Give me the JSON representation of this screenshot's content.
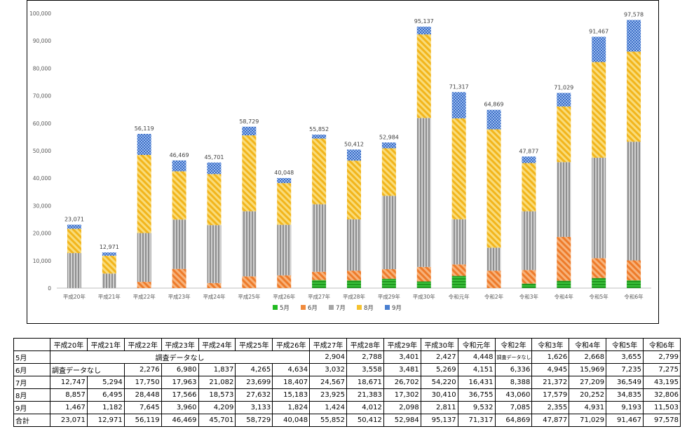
{
  "chart_data": {
    "type": "bar",
    "stacked": true,
    "categories": [
      "平成20年",
      "平成21年",
      "平成22年",
      "平成23年",
      "平成24年",
      "平成25年",
      "平成26年",
      "平成27年",
      "平成28年",
      "平成29年",
      "平成30年",
      "令和元年",
      "令和2年",
      "令和3年",
      "令和4年",
      "令和5年",
      "令和6年"
    ],
    "series": [
      {
        "name": "5月",
        "color": "#22bb22",
        "values": [
          null,
          null,
          null,
          null,
          null,
          null,
          null,
          2904,
          2788,
          3401,
          2427,
          4448,
          null,
          1626,
          2668,
          3655,
          2799
        ]
      },
      {
        "name": "6月",
        "color": "#f08a3c",
        "values": [
          null,
          null,
          2276,
          6980,
          1837,
          4265,
          4634,
          3032,
          3558,
          3481,
          5269,
          4151,
          6336,
          4945,
          15969,
          7235,
          7275
        ]
      },
      {
        "name": "7月",
        "color": "#a6a6a6",
        "values": [
          12747,
          5294,
          17750,
          17963,
          21082,
          23699,
          18407,
          24567,
          18671,
          26702,
          54220,
          16431,
          8388,
          21372,
          27209,
          36549,
          43195
        ]
      },
      {
        "name": "8月",
        "color": "#f5c22e",
        "values": [
          8857,
          6495,
          28448,
          17566,
          18573,
          27632,
          15183,
          23925,
          21383,
          17302,
          30410,
          36755,
          43060,
          17579,
          20252,
          34835,
          32806
        ]
      },
      {
        "name": "9月",
        "color": "#4a7fd0",
        "values": [
          1467,
          1182,
          7645,
          3960,
          4209,
          3133,
          1824,
          1424,
          4012,
          2098,
          2811,
          9532,
          7085,
          2355,
          4931,
          9193,
          11503
        ]
      }
    ],
    "totals": [
      23071,
      12971,
      56119,
      46469,
      45701,
      58729,
      40048,
      55852,
      50412,
      52984,
      95137,
      71317,
      64869,
      47877,
      71029,
      91467,
      97578
    ],
    "ylim": [
      0,
      100000
    ],
    "yticks": [
      0,
      10000,
      20000,
      30000,
      40000,
      50000,
      60000,
      70000,
      80000,
      90000,
      100000
    ],
    "grid": false,
    "legend_position": "bottom-center"
  },
  "table": {
    "header": [
      "",
      "平成20年",
      "平成21年",
      "平成22年",
      "平成23年",
      "平成24年",
      "平成25年",
      "平成26年",
      "平成27年",
      "平成28年",
      "平成29年",
      "平成30年",
      "令和元年",
      "令和2年",
      "令和3年",
      "令和4年",
      "令和5年",
      "令和6年"
    ],
    "row_may": {
      "label": "5月",
      "no_data": "調査データなし",
      "values": [
        "2,904",
        "2,788",
        "3,401",
        "2,427",
        "4,448"
      ],
      "reiwa2": "調査データなし",
      "values2": [
        "1,626",
        "2,668",
        "3,655",
        "2,799"
      ]
    },
    "row_june": {
      "label": "6月",
      "no_data": "調査データなし",
      "values": [
        "2,276",
        "6,980",
        "1,837",
        "4,265",
        "4,634",
        "3,032",
        "3,558",
        "3,481",
        "5,269",
        "4,151",
        "6,336",
        "4,945",
        "15,969",
        "7,235",
        "7,275"
      ]
    },
    "rows": [
      {
        "label": "7月",
        "values": [
          "12,747",
          "5,294",
          "17,750",
          "17,963",
          "21,082",
          "23,699",
          "18,407",
          "24,567",
          "18,671",
          "26,702",
          "54,220",
          "16,431",
          "8,388",
          "21,372",
          "27,209",
          "36,549",
          "43,195"
        ]
      },
      {
        "label": "8月",
        "values": [
          "8,857",
          "6,495",
          "28,448",
          "17,566",
          "18,573",
          "27,632",
          "15,183",
          "23,925",
          "21,383",
          "17,302",
          "30,410",
          "36,755",
          "43,060",
          "17,579",
          "20,252",
          "34,835",
          "32,806"
        ]
      },
      {
        "label": "9月",
        "values": [
          "1,467",
          "1,182",
          "7,645",
          "3,960",
          "4,209",
          "3,133",
          "1,824",
          "1,424",
          "4,012",
          "2,098",
          "2,811",
          "9,532",
          "7,085",
          "2,355",
          "4,931",
          "9,193",
          "11,503"
        ]
      },
      {
        "label": "合計",
        "values": [
          "23,071",
          "12,971",
          "56,119",
          "46,469",
          "45,701",
          "58,729",
          "40,048",
          "55,852",
          "50,412",
          "52,984",
          "95,137",
          "71,317",
          "64,869",
          "47,877",
          "71,029",
          "91,467",
          "97,578"
        ]
      }
    ]
  }
}
